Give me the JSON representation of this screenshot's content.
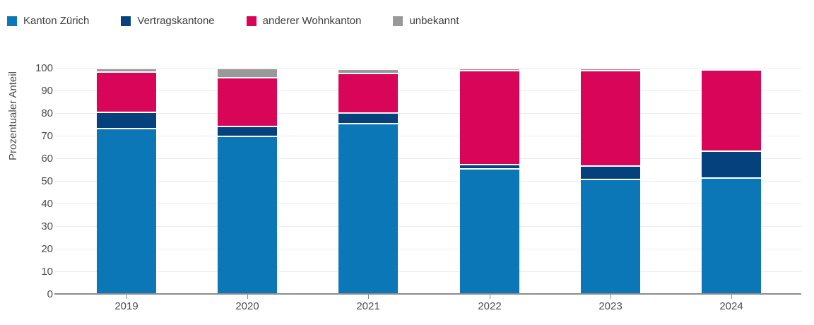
{
  "colors": {
    "background": "#ffffff",
    "gridline": "#ececec",
    "axis_line": "#8c8c8c",
    "tick_text": "#4d4d4d",
    "legend_text": "#404040"
  },
  "chart_data": {
    "type": "bar",
    "stacked": true,
    "title": "",
    "ylabel": "Prozentualer Anteil",
    "xlabel": "",
    "ylim": [
      0,
      100
    ],
    "ytick_step": 10,
    "grid": true,
    "legend_position": "top-left",
    "categories": [
      "2019",
      "2020",
      "2021",
      "2022",
      "2023",
      "2024"
    ],
    "series": [
      {
        "key": "kanton-zuerich",
        "name": "Kanton Zürich",
        "color": "#0c77b6",
        "values": [
          73.5,
          70.0,
          75.5,
          55.5,
          51.0,
          51.5
        ]
      },
      {
        "key": "vertragskantone",
        "name": "Vertragskantone",
        "color": "#05427d",
        "values": [
          7.0,
          4.5,
          4.8,
          2.0,
          6.0,
          12.0
        ]
      },
      {
        "key": "anderer-wohnkanton",
        "name": "anderer Wohnkanton",
        "color": "#d90558",
        "values": [
          18.0,
          21.5,
          17.5,
          41.5,
          42.0,
          36.0
        ]
      },
      {
        "key": "unbekannt",
        "name": "unbekannt",
        "color": "#999999",
        "values": [
          1.5,
          4.0,
          1.8,
          1.0,
          0.5,
          0.0
        ]
      }
    ]
  }
}
